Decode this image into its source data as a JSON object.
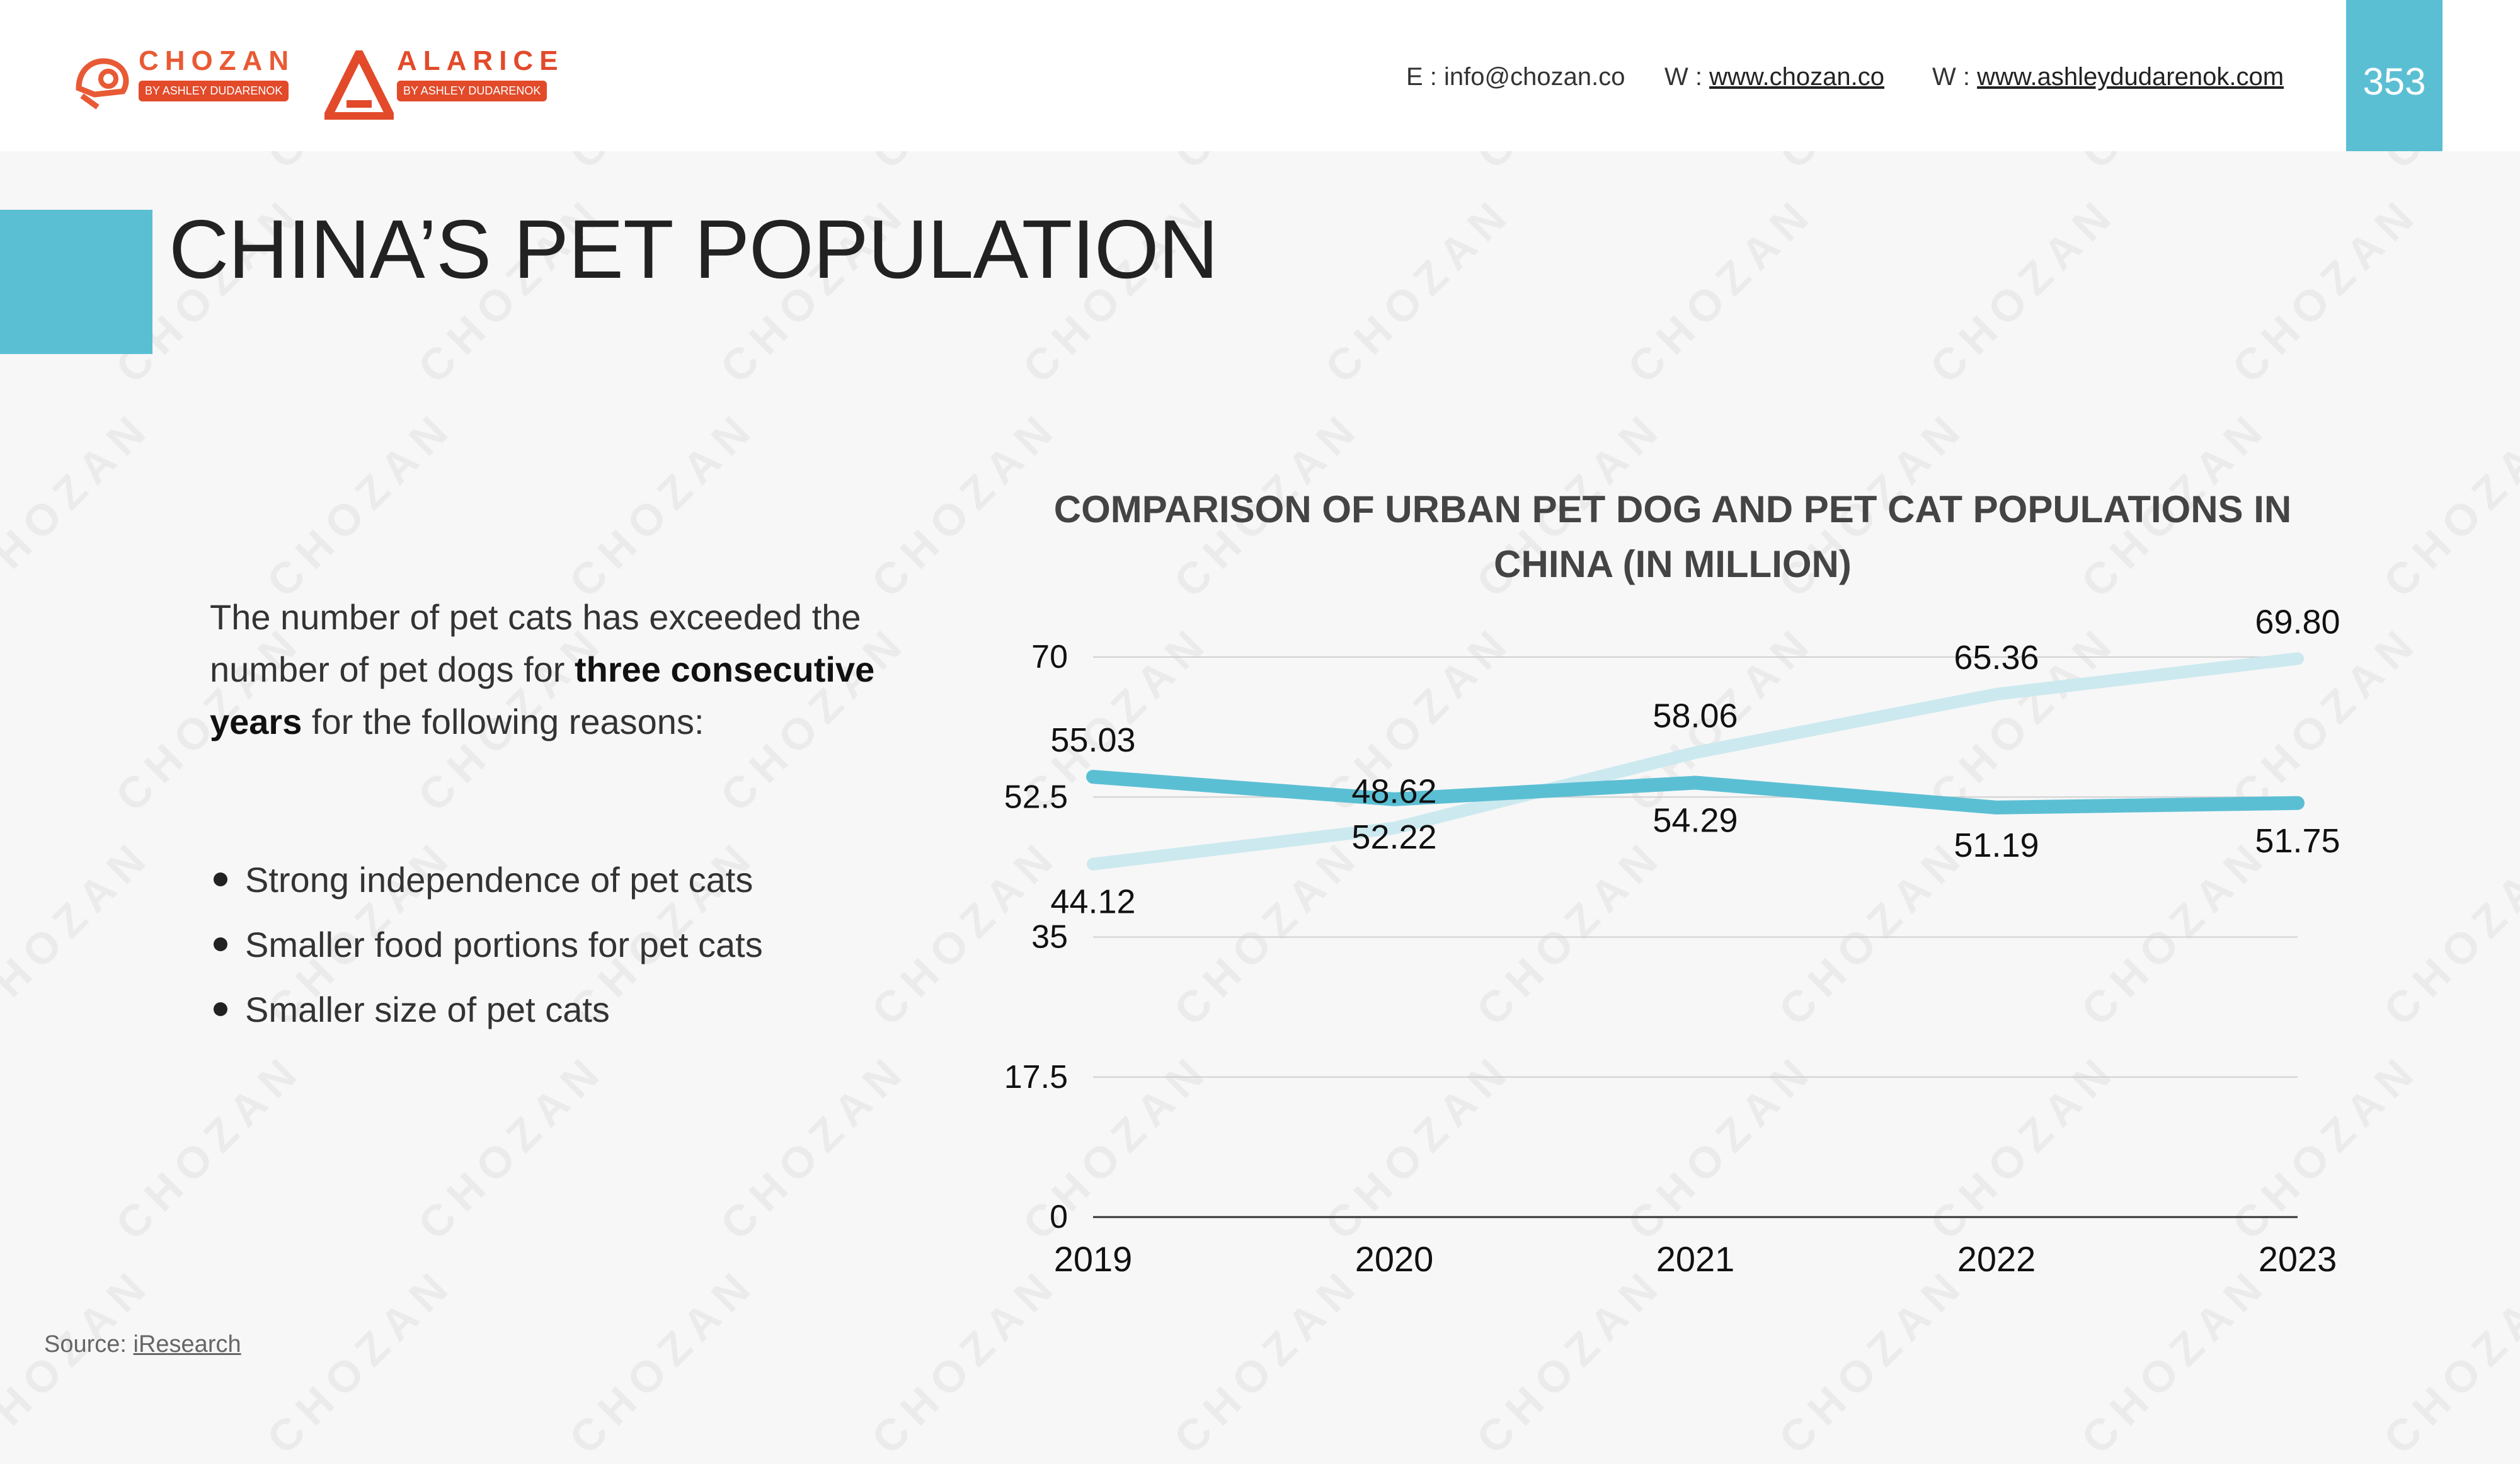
{
  "header": {
    "logo_chozan": {
      "name": "CHOZAN",
      "tag": "BY ASHLEY DUDARENOK"
    },
    "logo_alarice": {
      "name": "ALARICE",
      "tag": "BY ASHLEY DUDARENOK"
    },
    "email_label": "E : ",
    "email": "info@chozan.co",
    "web1_label": "W : ",
    "web1": "www.chozan.co",
    "web2_label": "W : ",
    "web2": "www.ashleydudarenok.com",
    "page_number": "353"
  },
  "title": "CHINA’S PET POPULATION",
  "body": {
    "intro_1": "The number of pet cats has exceeded the number of pet dogs for ",
    "intro_bold": "three consecutive years",
    "intro_2": " for the following reasons:",
    "bullets": [
      "Strong independence of pet cats",
      "Smaller food portions for pet cats",
      "Smaller size of pet cats"
    ]
  },
  "source": {
    "label": "Source: ",
    "link": "iResearch"
  },
  "watermark": "CHOZAN",
  "colors": {
    "accent": "#5bbfd4",
    "brand_orange": "#e85a35",
    "cats_line": "#cce9ef",
    "dogs_line": "#5bbfd4"
  },
  "chart_data": {
    "type": "line",
    "title": "COMPARISON OF URBAN PET DOG AND PET CAT POPULATIONS IN CHINA (IN MILLION)",
    "categories": [
      "2019",
      "2020",
      "2021",
      "2022",
      "2023"
    ],
    "series": [
      {
        "name": "Pet cats",
        "values": [
          44.12,
          48.62,
          58.06,
          65.36,
          69.8
        ],
        "labels": [
          "44.12",
          "48.62",
          "58.06",
          "65.36",
          "69.80"
        ]
      },
      {
        "name": "Pet dogs",
        "values": [
          55.03,
          52.22,
          54.29,
          51.19,
          51.75
        ],
        "labels": [
          "55.03",
          "52.22",
          "54.29",
          "51.19",
          "51.75"
        ]
      }
    ],
    "yticks": [
      0,
      17.5,
      35,
      52.5,
      70
    ],
    "ytick_labels": [
      "0",
      "17.5",
      "35",
      "52.5",
      "70"
    ],
    "ylim": [
      0,
      70
    ],
    "xlabel": "",
    "ylabel": "",
    "grid": true,
    "legend": "none"
  }
}
